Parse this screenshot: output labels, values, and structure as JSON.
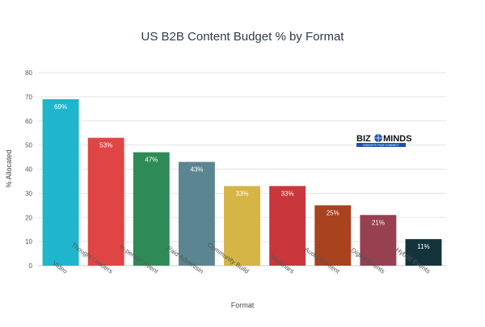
{
  "chart_data": {
    "type": "bar",
    "title": "US B2B Content Budget % by Format",
    "xlabel": "Format",
    "ylabel": "% Allocated",
    "ylim": [
      0,
      80
    ],
    "yticks": [
      0,
      10,
      20,
      30,
      40,
      50,
      60,
      70,
      80
    ],
    "grid": true,
    "categories": [
      "Video",
      "Thought Leaders",
      "In-person Event",
      "Paid Advertisin",
      "Community Build",
      "Webinars",
      "Audio Content",
      "Digital Events",
      "Hybrid Events"
    ],
    "values": [
      69,
      53,
      47,
      43,
      33,
      33,
      25,
      21,
      11
    ],
    "data_labels": [
      "69%",
      "53%",
      "47%",
      "43%",
      "33%",
      "33%",
      "25%",
      "21%",
      "11%"
    ],
    "colors": [
      "#1fb5cc",
      "#e04545",
      "#2e8b57",
      "#5b8591",
      "#d4b545",
      "#c9363b",
      "#a8421f",
      "#964050",
      "#14343c"
    ]
  },
  "logo": {
    "left_text": "BIZ",
    "right_text": "MINDS",
    "tagline": "INSIGHTS THAT CONNECT"
  }
}
